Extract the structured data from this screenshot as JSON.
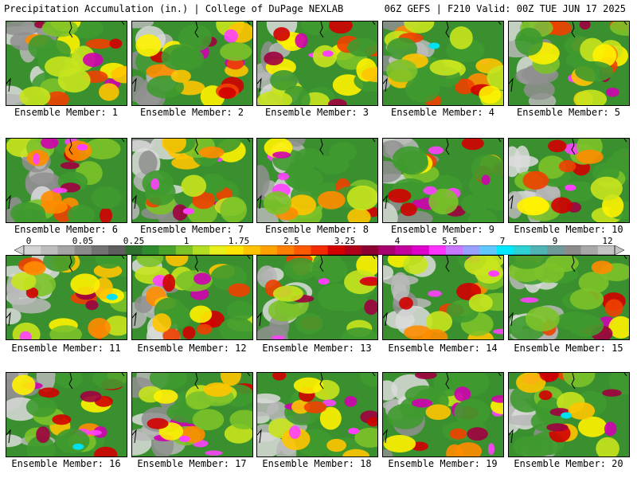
{
  "header": {
    "left": "Precipitation Accumulation (in.) | College of DuPage NEXLAB",
    "right": "06Z GEFS | F210 Valid: 00Z TUE JUN 17 2025"
  },
  "panels": [
    {
      "label": "Ensemble Member: 1"
    },
    {
      "label": "Ensemble Member: 2"
    },
    {
      "label": "Ensemble Member: 3"
    },
    {
      "label": "Ensemble Member: 4"
    },
    {
      "label": "Ensemble Member: 5"
    },
    {
      "label": "Ensemble Member: 6"
    },
    {
      "label": "Ensemble Member: 7"
    },
    {
      "label": "Ensemble Member: 8"
    },
    {
      "label": "Ensemble Member: 9"
    },
    {
      "label": "Ensemble Member: 10"
    },
    {
      "label": "Ensemble Member: 11"
    },
    {
      "label": "Ensemble Member: 12"
    },
    {
      "label": "Ensemble Member: 13"
    },
    {
      "label": "Ensemble Member: 14"
    },
    {
      "label": "Ensemble Member: 15"
    },
    {
      "label": "Ensemble Member: 16"
    },
    {
      "label": "Ensemble Member: 17"
    },
    {
      "label": "Ensemble Member: 18"
    },
    {
      "label": "Ensemble Member: 19"
    },
    {
      "label": "Ensemble Member: 20"
    }
  ],
  "colorbar": {
    "ticks": [
      "0",
      "0.05",
      "0.25",
      "1",
      "1.75",
      "2.5",
      "3.25",
      "4",
      "5.5",
      "7",
      "9",
      "12"
    ],
    "colors": [
      "#d4d4d4",
      "#bdbdbd",
      "#a5a5a5",
      "#8c8c8c",
      "#737373",
      "#5e5e5e",
      "#2f6f2f",
      "#2e8b2e",
      "#4aa32a",
      "#7cc229",
      "#b3dd21",
      "#e8f01c",
      "#ffe600",
      "#ffc400",
      "#ffa200",
      "#ff7f00",
      "#ff5a00",
      "#f22c00",
      "#d40000",
      "#b0001a",
      "#8c0032",
      "#a8006e",
      "#c4009e",
      "#e000cc",
      "#ff33ff",
      "#c878ff",
      "#9aa0ff",
      "#60c8ff",
      "#00e8ff",
      "#2ed2d2",
      "#50b4b4",
      "#6e9a9a",
      "#8c8c8c",
      "#a8a8a8",
      "#c4c4c4"
    ]
  }
}
